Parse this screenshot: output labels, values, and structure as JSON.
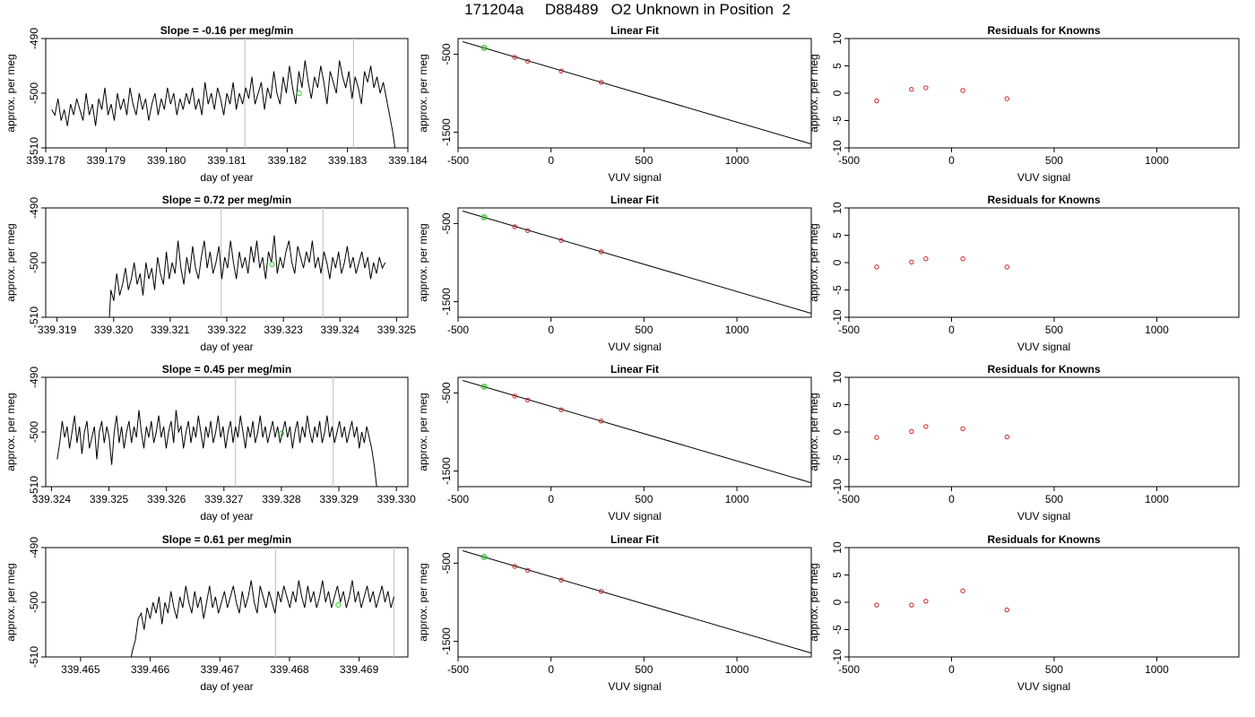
{
  "figure": {
    "title": "171204a     D88489   O2 Unknown in Position  2"
  },
  "chart_data": [
    {
      "type": "line",
      "title": "Slope =  -0.16  per meg/min",
      "xlabel": "day of year",
      "ylabel": "approx. per meg",
      "xlim": [
        339.178,
        339.184
      ],
      "ylim": [
        -510,
        -490
      ],
      "x_ticks": [
        "339.178",
        "339.179",
        "339.180",
        "339.181",
        "339.182",
        "339.183",
        "339.184"
      ],
      "y_ticks": [
        "-510",
        "-500",
        "-490"
      ],
      "vlines": [
        339.1813,
        339.1831
      ],
      "series_start": 339.1781,
      "series_end": 339.1838,
      "green_point": [
        339.1822,
        -500
      ],
      "series": [
        {
          "y": [
            -503,
            -504,
            -501,
            -505,
            -503,
            -506,
            -502,
            -504,
            -501,
            -503,
            -505,
            -500,
            -504,
            -502,
            -506,
            -501,
            -503,
            -499,
            -504,
            -502,
            -505,
            -500,
            -503,
            -501,
            -504,
            -499,
            -502,
            -504,
            -500,
            -503,
            -501,
            -505,
            -502,
            -500,
            -504,
            -501,
            -503,
            -499,
            -502,
            -500,
            -504,
            -501,
            -503,
            -500,
            -502,
            -499,
            -503,
            -501,
            -504,
            -498,
            -502,
            -500,
            -503,
            -499,
            -501,
            -504,
            -500,
            -502,
            -498,
            -503,
            -500,
            -502,
            -499,
            -501,
            -497,
            -502,
            -500,
            -498,
            -503,
            -499,
            -501,
            -496,
            -500,
            -502,
            -497,
            -500,
            -495,
            -499,
            -502,
            -496,
            -499,
            -494,
            -498,
            -501,
            -497,
            -499,
            -495,
            -498,
            -502,
            -496,
            -498,
            -500,
            -494,
            -497,
            -499,
            -496,
            -501,
            -497,
            -499,
            -502,
            -496,
            -498,
            -495,
            -499,
            -497,
            -500,
            -498,
            -501,
            -504,
            -507,
            -511
          ]
        }
      ]
    },
    {
      "type": "scatter",
      "title": "Linear Fit",
      "xlabel": "VUV signal",
      "ylabel": "approx. per meg",
      "xlim": [
        -500,
        1400
      ],
      "ylim": [
        -1700,
        -300
      ],
      "x_ticks": [
        "-500",
        "0",
        "500",
        "1000"
      ],
      "y_ticks": [
        "-1500",
        "-500"
      ],
      "fit_line": {
        "x": [
          -475,
          1400
        ],
        "y": [
          -340,
          -1650
        ]
      },
      "knowns": {
        "x": [
          -195,
          -125,
          55,
          270
        ],
        "y": [
          -540,
          -590,
          -715,
          -860
        ]
      },
      "unknown": {
        "x": [
          -360
        ],
        "y": [
          -420
        ]
      }
    },
    {
      "type": "scatter",
      "title": "Residuals for Knowns",
      "xlabel": "VUV signal",
      "ylabel": "approx. per meg",
      "xlim": [
        -500,
        1400
      ],
      "ylim": [
        -10,
        10
      ],
      "x_ticks": [
        "-500",
        "0",
        "500",
        "1000"
      ],
      "y_ticks": [
        "-10",
        "-5",
        "0",
        "5",
        "10"
      ],
      "residuals": {
        "x": [
          -365,
          -195,
          -125,
          55,
          270
        ],
        "y": [
          -1.4,
          0.7,
          1.0,
          0.5,
          -1.0
        ]
      }
    },
    {
      "type": "line",
      "title": "Slope =  0.72  per meg/min",
      "xlabel": "day of year",
      "ylabel": "approx. per meg",
      "xlim": [
        339.3188,
        339.3252
      ],
      "ylim": [
        -510,
        -490
      ],
      "x_ticks": [
        "339.319",
        "339.320",
        "339.321",
        "339.322",
        "339.323",
        "339.324",
        "339.325"
      ],
      "y_ticks": [
        "-510",
        "-500",
        "-490"
      ],
      "vlines": [
        339.3219,
        339.3237
      ],
      "series_start": 339.3199,
      "series_end": 339.3248,
      "green_point": [
        339.3228,
        -500.3
      ],
      "series": [
        {
          "y": [
            -515,
            -505,
            -507,
            -502,
            -506,
            -504,
            -501,
            -505,
            -503,
            -500,
            -504,
            -502,
            -506,
            -500,
            -503,
            -501,
            -505,
            -499,
            -502,
            -504,
            -498,
            -503,
            -500,
            -502,
            -496,
            -501,
            -504,
            -499,
            -502,
            -497,
            -501,
            -503,
            -499,
            -496,
            -501,
            -498,
            -502,
            -500,
            -497,
            -503,
            -499,
            -501,
            -496,
            -500,
            -503,
            -498,
            -501,
            -499,
            -502,
            -497,
            -500,
            -496,
            -501,
            -499,
            -503,
            -498,
            -500,
            -495,
            -502,
            -499,
            -501,
            -498,
            -496,
            -500,
            -502,
            -497,
            -499,
            -501,
            -498,
            -500,
            -496,
            -501,
            -499,
            -502,
            -498,
            -500,
            -503,
            -499,
            -501,
            -498,
            -502,
            -500,
            -497,
            -501,
            -499,
            -502,
            -500,
            -498,
            -501,
            -499,
            -503,
            -500,
            -502,
            -499,
            -501,
            -500
          ]
        }
      ]
    },
    {
      "type": "scatter",
      "title": "Linear Fit",
      "xlabel": "VUV signal",
      "ylabel": "approx. per meg",
      "xlim": [
        -500,
        1400
      ],
      "ylim": [
        -1700,
        -300
      ],
      "x_ticks": [
        "-500",
        "0",
        "500",
        "1000"
      ],
      "y_ticks": [
        "-1500",
        "-500"
      ],
      "fit_line": {
        "x": [
          -475,
          1400
        ],
        "y": [
          -340,
          -1650
        ]
      },
      "knowns": {
        "x": [
          -195,
          -125,
          55,
          270
        ],
        "y": [
          -540,
          -590,
          -715,
          -860
        ]
      },
      "unknown": {
        "x": [
          -360
        ],
        "y": [
          -420
        ]
      }
    },
    {
      "type": "scatter",
      "title": "Residuals for Knowns",
      "xlabel": "VUV signal",
      "ylabel": "approx. per meg",
      "xlim": [
        -500,
        1400
      ],
      "ylim": [
        -10,
        10
      ],
      "x_ticks": [
        "-500",
        "0",
        "500",
        "1000"
      ],
      "y_ticks": [
        "-10",
        "-5",
        "0",
        "5",
        "10"
      ],
      "residuals": {
        "x": [
          -365,
          -195,
          -125,
          55,
          270
        ],
        "y": [
          -0.8,
          0.1,
          0.7,
          0.7,
          -0.8
        ]
      }
    },
    {
      "type": "line",
      "title": "Slope =  0.45  per meg/min",
      "xlabel": "day of year",
      "ylabel": "approx. per meg",
      "xlim": [
        339.3239,
        339.3302
      ],
      "ylim": [
        -510,
        -490
      ],
      "x_ticks": [
        "339.324",
        "339.325",
        "339.326",
        "339.327",
        "339.328",
        "339.329",
        "339.330"
      ],
      "y_ticks": [
        "-510",
        "-500",
        "-490"
      ],
      "vlines": [
        339.3272,
        339.3289
      ],
      "series_start": 339.3241,
      "series_end": 339.3297,
      "green_point": [
        339.328,
        -500.3
      ],
      "series": [
        {
          "y": [
            -505,
            -502,
            -498,
            -501,
            -499,
            -503,
            -500,
            -497,
            -502,
            -499,
            -504,
            -500,
            -498,
            -503,
            -501,
            -499,
            -505,
            -500,
            -498,
            -502,
            -499,
            -501,
            -506,
            -500,
            -497,
            -502,
            -499,
            -503,
            -500,
            -498,
            -502,
            -499,
            -501,
            -496,
            -500,
            -503,
            -499,
            -501,
            -498,
            -502,
            -500,
            -497,
            -501,
            -499,
            -503,
            -500,
            -498,
            -502,
            -496,
            -500,
            -499,
            -503,
            -500,
            -498,
            -502,
            -499,
            -501,
            -497,
            -500,
            -503,
            -499,
            -501,
            -498,
            -502,
            -500,
            -497,
            -501,
            -499,
            -503,
            -500,
            -498,
            -502,
            -499,
            -501,
            -497,
            -500,
            -503,
            -499,
            -501,
            -498,
            -502,
            -500,
            -497,
            -501,
            -499,
            -502,
            -500,
            -498,
            -501,
            -499,
            -502,
            -500,
            -498,
            -501,
            -499,
            -503,
            -500,
            -498,
            -502,
            -499,
            -501,
            -497,
            -500,
            -502,
            -499,
            -501,
            -498,
            -502,
            -500,
            -497,
            -501,
            -499,
            -502,
            -500,
            -498,
            -501,
            -499,
            -502,
            -500,
            -498,
            -501,
            -499,
            -503,
            -500,
            -502,
            -499,
            -501,
            -503,
            -506,
            -510,
            -513
          ]
        }
      ]
    },
    {
      "type": "scatter",
      "title": "Linear Fit",
      "xlabel": "VUV signal",
      "ylabel": "approx. per meg",
      "xlim": [
        -500,
        1400
      ],
      "ylim": [
        -1700,
        -300
      ],
      "x_ticks": [
        "-500",
        "0",
        "500",
        "1000"
      ],
      "y_ticks": [
        "-1500",
        "-500"
      ],
      "fit_line": {
        "x": [
          -475,
          1400
        ],
        "y": [
          -340,
          -1650
        ]
      },
      "knowns": {
        "x": [
          -195,
          -125,
          55,
          270
        ],
        "y": [
          -540,
          -590,
          -715,
          -860
        ]
      },
      "unknown": {
        "x": [
          -360
        ],
        "y": [
          -420
        ]
      }
    },
    {
      "type": "scatter",
      "title": "Residuals for Knowns",
      "xlabel": "VUV signal",
      "ylabel": "approx. per meg",
      "xlim": [
        -500,
        1400
      ],
      "ylim": [
        -10,
        10
      ],
      "x_ticks": [
        "-500",
        "0",
        "500",
        "1000"
      ],
      "y_ticks": [
        "-10",
        "-5",
        "0",
        "5",
        "10"
      ],
      "residuals": {
        "x": [
          -365,
          -195,
          -125,
          55,
          270
        ],
        "y": [
          -1.0,
          0.1,
          1.0,
          0.6,
          -0.9
        ]
      }
    },
    {
      "type": "line",
      "title": "Slope =  0.61  per meg/min",
      "xlabel": "day of year",
      "ylabel": "approx. per meg",
      "xlim": [
        339.4645,
        339.4697
      ],
      "ylim": [
        -510,
        -490
      ],
      "x_ticks": [
        "339.465",
        "339.466",
        "339.467",
        "339.468",
        "339.469"
      ],
      "y_ticks": [
        "-510",
        "-500",
        "-490"
      ],
      "vlines": [
        339.4678,
        339.4695
      ],
      "series_start": 339.4657,
      "series_end": 339.4695,
      "green_point": [
        339.4687,
        -500.5
      ],
      "series": [
        {
          "y": [
            -512,
            -509,
            -507,
            -503,
            -502,
            -505,
            -501,
            -503,
            -500,
            -502,
            -499,
            -504,
            -500,
            -502,
            -498,
            -501,
            -503,
            -499,
            -501,
            -497,
            -500,
            -502,
            -498,
            -501,
            -499,
            -503,
            -500,
            -497,
            -501,
            -499,
            -502,
            -500,
            -498,
            -501,
            -499,
            -497,
            -500,
            -502,
            -498,
            -501,
            -499,
            -496,
            -500,
            -502,
            -497,
            -499,
            -501,
            -498,
            -500,
            -502,
            -498,
            -500,
            -497,
            -499,
            -501,
            -498,
            -500,
            -496,
            -499,
            -501,
            -497,
            -500,
            -498,
            -501,
            -499,
            -496,
            -500,
            -498,
            -501,
            -499,
            -497,
            -500,
            -498,
            -501,
            -499,
            -496,
            -500,
            -498,
            -501,
            -499,
            -497,
            -500,
            -498,
            -501,
            -499,
            -497,
            -500,
            -498,
            -501,
            -499
          ]
        }
      ]
    },
    {
      "type": "scatter",
      "title": "Linear Fit",
      "xlabel": "VUV signal",
      "ylabel": "approx. per meg",
      "xlim": [
        -500,
        1400
      ],
      "ylim": [
        -1700,
        -300
      ],
      "x_ticks": [
        "-500",
        "0",
        "500",
        "1000"
      ],
      "y_ticks": [
        "-1500",
        "-500"
      ],
      "fit_line": {
        "x": [
          -475,
          1400
        ],
        "y": [
          -340,
          -1650
        ]
      },
      "knowns": {
        "x": [
          -195,
          -125,
          55,
          270
        ],
        "y": [
          -540,
          -590,
          -715,
          -860
        ]
      },
      "unknown": {
        "x": [
          -360
        ],
        "y": [
          -420
        ]
      }
    },
    {
      "type": "scatter",
      "title": "Residuals for Knowns",
      "xlabel": "VUV signal",
      "ylabel": "approx. per meg",
      "xlim": [
        -500,
        1400
      ],
      "ylim": [
        -10,
        10
      ],
      "x_ticks": [
        "-500",
        "0",
        "500",
        "1000"
      ],
      "y_ticks": [
        "-10",
        "-5",
        "0",
        "5",
        "10"
      ],
      "residuals": {
        "x": [
          -365,
          -195,
          -125,
          55,
          270
        ],
        "y": [
          -0.5,
          -0.5,
          0.2,
          2.1,
          -1.4
        ]
      }
    }
  ]
}
